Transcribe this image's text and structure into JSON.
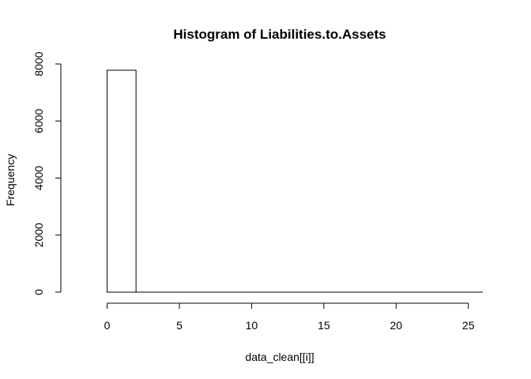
{
  "chart_data": {
    "type": "bar",
    "title": "Histogram of Liabilities.to.Assets",
    "xlabel": "data_clean[[i]]",
    "ylabel": "Frequency",
    "bins": [
      {
        "from": 0,
        "to": 2,
        "count": 7780
      },
      {
        "from": 2,
        "to": 4,
        "count": 0
      },
      {
        "from": 4,
        "to": 6,
        "count": 0
      },
      {
        "from": 6,
        "to": 8,
        "count": 0
      },
      {
        "from": 8,
        "to": 10,
        "count": 0
      },
      {
        "from": 10,
        "to": 12,
        "count": 0
      },
      {
        "from": 12,
        "to": 14,
        "count": 0
      },
      {
        "from": 14,
        "to": 16,
        "count": 0
      },
      {
        "from": 16,
        "to": 18,
        "count": 0
      },
      {
        "from": 18,
        "to": 20,
        "count": 0
      },
      {
        "from": 20,
        "to": 22,
        "count": 0
      },
      {
        "from": 22,
        "to": 24,
        "count": 0
      },
      {
        "from": 24,
        "to": 26,
        "count": 0
      }
    ],
    "xlim": [
      -2,
      26
    ],
    "ylim": [
      0,
      8000
    ],
    "xticks": [
      0,
      5,
      10,
      15,
      20,
      25
    ],
    "yticks": [
      0,
      2000,
      4000,
      6000,
      8000
    ],
    "xtick_labels": [
      "0",
      "5",
      "10",
      "15",
      "20",
      "25"
    ],
    "ytick_labels": [
      "0",
      "2000",
      "4000",
      "6000",
      "8000"
    ],
    "grid": false,
    "legend": "none",
    "bar_fill": "#ffffff",
    "bar_stroke": "#000000"
  }
}
